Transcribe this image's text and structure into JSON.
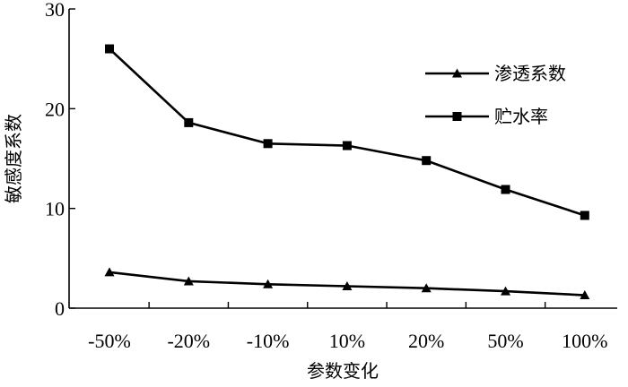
{
  "chart_data": {
    "type": "line",
    "categories": [
      "-50%",
      "-20%",
      "-10%",
      "10%",
      "20%",
      "50%",
      "100%"
    ],
    "series": [
      {
        "name": "渗透系数",
        "marker": "triangle",
        "values": [
          3.6,
          2.7,
          2.4,
          2.2,
          2.0,
          1.7,
          1.3
        ]
      },
      {
        "name": "贮水率",
        "marker": "square",
        "values": [
          26.0,
          18.6,
          16.5,
          16.3,
          14.8,
          11.9,
          9.3
        ]
      }
    ],
    "title": "",
    "xlabel": "参数变化",
    "ylabel": "敏感度系数",
    "ylim": [
      0,
      30
    ],
    "yticks": [
      0,
      10,
      20,
      30
    ],
    "grid": false,
    "legend_position": "top-right",
    "line_color": "#000000"
  }
}
